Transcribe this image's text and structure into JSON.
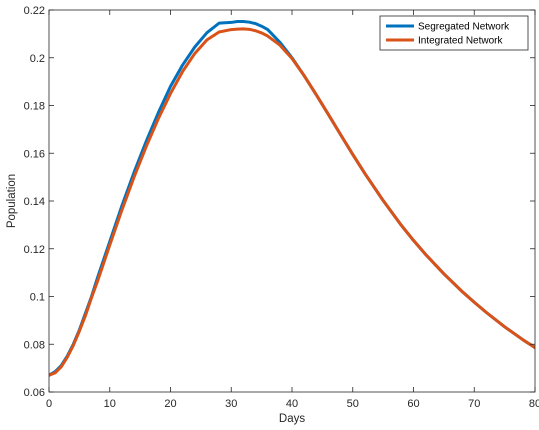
{
  "chart_data": {
    "type": "line",
    "xlabel": "Days",
    "ylabel": "Population",
    "xlim": [
      0,
      80
    ],
    "ylim": [
      0.06,
      0.22
    ],
    "xticks": [
      0,
      10,
      20,
      30,
      40,
      50,
      60,
      70,
      80
    ],
    "xtick_labels": [
      "0",
      "10",
      "20",
      "30",
      "40",
      "50",
      "60",
      "70",
      "80"
    ],
    "yticks": [
      0.06,
      0.08,
      0.1,
      0.12,
      0.14,
      0.16,
      0.18,
      0.2,
      0.22
    ],
    "ytick_labels": [
      "0.06",
      "0.08",
      "0.1",
      "0.12",
      "0.14",
      "0.16",
      "0.18",
      "0.2",
      "0.22"
    ],
    "grid": false,
    "legend_position": "top-right",
    "series": [
      {
        "name": "Segregated Network",
        "color": "#0072BD",
        "x": [
          0,
          1,
          2,
          3,
          4,
          5,
          6,
          7,
          8,
          10,
          12,
          14,
          16,
          18,
          20,
          22,
          24,
          26,
          28,
          30,
          31,
          32,
          33,
          34,
          35,
          36,
          38,
          40,
          42,
          44,
          46,
          48,
          50,
          52,
          55,
          58,
          60,
          62,
          65,
          68,
          70,
          72,
          75,
          78,
          80
        ],
        "y": [
          0.067,
          0.0685,
          0.071,
          0.075,
          0.08,
          0.086,
          0.093,
          0.1,
          0.108,
          0.123,
          0.138,
          0.152,
          0.165,
          0.177,
          0.188,
          0.197,
          0.2045,
          0.2105,
          0.2145,
          0.2148,
          0.2152,
          0.2152,
          0.2149,
          0.2143,
          0.2132,
          0.2118,
          0.2065,
          0.2,
          0.1925,
          0.1845,
          0.1762,
          0.1678,
          0.1595,
          0.1515,
          0.1402,
          0.1298,
          0.1235,
          0.1176,
          0.1095,
          0.1021,
          0.0976,
          0.0933,
          0.0873,
          0.0819,
          0.0786
        ]
      },
      {
        "name": "Integrated Network",
        "color": "#D95319",
        "x": [
          0,
          1,
          2,
          3,
          4,
          5,
          6,
          7,
          8,
          10,
          12,
          14,
          16,
          18,
          20,
          22,
          24,
          26,
          28,
          30,
          31,
          32,
          33,
          34,
          35,
          36,
          38,
          40,
          42,
          44,
          46,
          48,
          50,
          52,
          55,
          58,
          60,
          62,
          65,
          68,
          70,
          72,
          75,
          78,
          80
        ],
        "y": [
          0.067,
          0.068,
          0.0705,
          0.0745,
          0.0795,
          0.0855,
          0.092,
          0.0995,
          0.1065,
          0.1215,
          0.1362,
          0.15,
          0.1628,
          0.1745,
          0.185,
          0.1943,
          0.2018,
          0.2075,
          0.2108,
          0.2118,
          0.212,
          0.2121,
          0.2119,
          0.2113,
          0.2104,
          0.2091,
          0.2053,
          0.1997,
          0.1925,
          0.1845,
          0.1762,
          0.1678,
          0.1595,
          0.1515,
          0.1402,
          0.1298,
          0.1235,
          0.1176,
          0.1095,
          0.1021,
          0.0976,
          0.0933,
          0.0873,
          0.0819,
          0.0786
        ]
      }
    ]
  }
}
